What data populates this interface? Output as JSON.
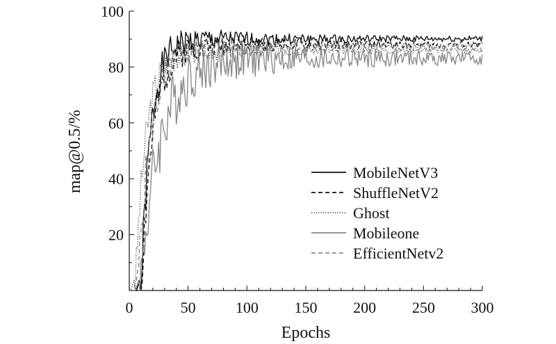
{
  "chart_data": {
    "type": "line",
    "title": "",
    "xlabel": "Epochs",
    "ylabel": "map@0.5/%",
    "xlim": [
      0,
      300
    ],
    "ylim": [
      0,
      100
    ],
    "xticks": [
      0,
      50,
      100,
      150,
      200,
      250,
      300
    ],
    "yticks": [
      20,
      40,
      60,
      80,
      100
    ],
    "grid": false,
    "legend_position": "right",
    "series": [
      {
        "name": "MobileNetV3",
        "color": "#111111",
        "dash": "solid",
        "width": 1.4,
        "onset": 10,
        "final": 90,
        "k": 0.12,
        "noise": 2.5,
        "decay": 0.985,
        "drift": 0.014,
        "seed": 1
      },
      {
        "name": "ShuffleNetV2",
        "color": "#111111",
        "dash": "dashed",
        "width": 1.4,
        "onset": 10,
        "final": 88,
        "k": 0.1,
        "noise": 2.7,
        "decay": 0.985,
        "drift": 0.012,
        "seed": 2
      },
      {
        "name": "Ghost",
        "color": "#333333",
        "dash": "dotted",
        "width": 1.2,
        "onset": 5,
        "final": 86,
        "k": 0.11,
        "noise": 2.6,
        "decay": 0.985,
        "drift": 0.011,
        "seed": 3
      },
      {
        "name": "Mobileone",
        "color": "#8a8a8a",
        "dash": "solid",
        "width": 1.4,
        "onset": 9,
        "final": 83,
        "k": 0.06,
        "noise": 4.5,
        "decay": 0.99,
        "drift": 0.02,
        "seed": 4
      },
      {
        "name": "EfficientNetv2",
        "color": "#777777",
        "dash": "dashed",
        "width": 1.2,
        "onset": 7,
        "final": 87,
        "k": 0.09,
        "noise": 3.0,
        "decay": 0.985,
        "drift": 0.012,
        "seed": 5
      }
    ]
  }
}
